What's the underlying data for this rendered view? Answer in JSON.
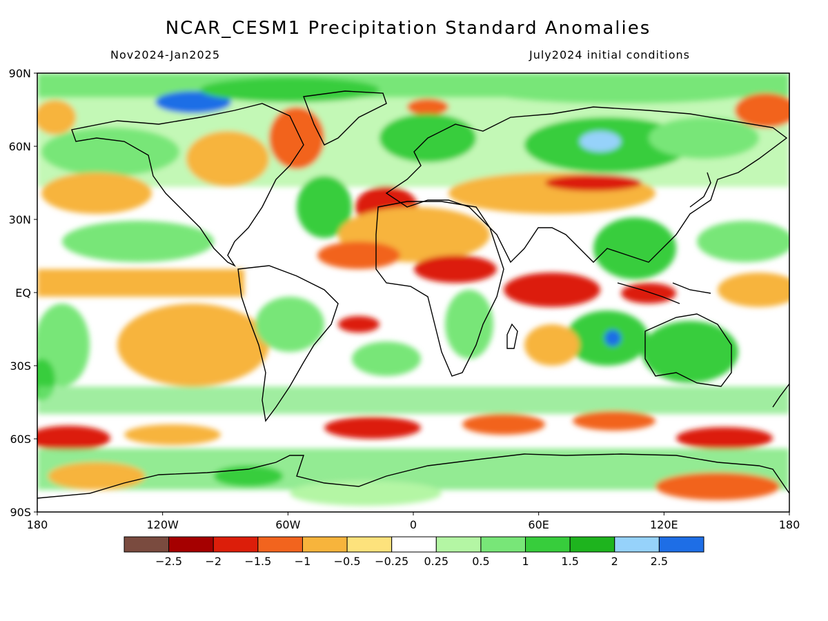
{
  "title": "NCAR_CESM1 Precipitation Standard Anomalies",
  "subtitle_left": "Nov2024-Jan2025",
  "subtitle_right": "July2024 initial conditions",
  "map": {
    "lat_ticks": [
      "90N",
      "60N",
      "30N",
      "EQ",
      "30S",
      "60S",
      "90S"
    ],
    "lon_ticks": [
      "180",
      "120W",
      "60W",
      "0",
      "60E",
      "120E",
      "180"
    ],
    "lat_values": [
      90,
      60,
      30,
      0,
      -30,
      -60,
      -90
    ],
    "lon_values": [
      -180,
      -120,
      -60,
      0,
      60,
      120,
      180
    ]
  },
  "colorbar": {
    "colors": [
      "#7a4b3f",
      "#a50000",
      "#dc1e0a",
      "#f2641e",
      "#f7b43c",
      "#fde27c",
      "#ffffff",
      "#b4f6a4",
      "#78e678",
      "#37cd3c",
      "#1eb41e",
      "#96d2fa",
      "#1e6ee6"
    ],
    "labels": [
      "-2.5",
      "-2",
      "-1.5",
      "-1",
      "-0.5",
      "-0.25",
      "0.25",
      "0.5",
      "1",
      "1.5",
      "2",
      "2.5"
    ]
  }
}
